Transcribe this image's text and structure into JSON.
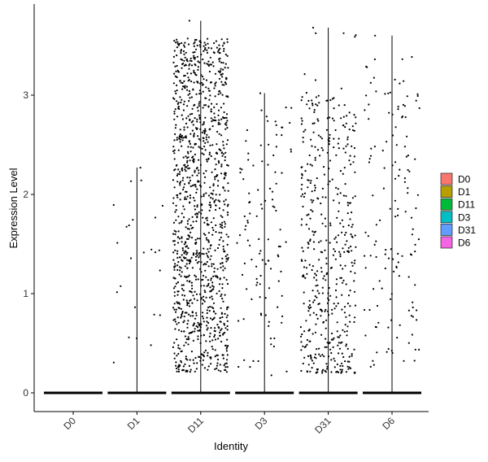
{
  "chart_data": {
    "type": "scatter",
    "subtype": "violin-jitter",
    "title": "",
    "xlabel": "Identity",
    "ylabel": "Expression Level",
    "categories": [
      "D0",
      "D1",
      "D11",
      "D3",
      "D31",
      "D6"
    ],
    "ylim": [
      -0.2,
      3.9
    ],
    "yticks": [
      0,
      1,
      2,
      3
    ],
    "xtick_rotation": -45,
    "grid": false,
    "legend": {
      "placement": "right",
      "entries": [
        "D0",
        "D1",
        "D11",
        "D3",
        "D31",
        "D6"
      ],
      "colors": [
        "#F8766D",
        "#B79F00",
        "#00BA38",
        "#00BFC4",
        "#619CFF",
        "#F564E3"
      ]
    },
    "series": [
      {
        "name": "D0",
        "max_value": 0.02,
        "nonzero_points": 0
      },
      {
        "name": "D1",
        "max_value": 2.27,
        "nonzero_points": 25,
        "value_range": [
          0.3,
          2.27
        ]
      },
      {
        "name": "D11",
        "max_value": 3.75,
        "nonzero_points": 1200,
        "value_range": [
          0.2,
          3.75
        ]
      },
      {
        "name": "D3",
        "max_value": 3.02,
        "nonzero_points": 110,
        "value_range": [
          0.15,
          3.02
        ]
      },
      {
        "name": "D31",
        "max_value": 3.68,
        "nonzero_points": 480,
        "value_range": [
          0.2,
          3.68
        ]
      },
      {
        "name": "D6",
        "max_value": 3.6,
        "nonzero_points": 140,
        "value_range": [
          0.25,
          3.6
        ]
      }
    ]
  }
}
